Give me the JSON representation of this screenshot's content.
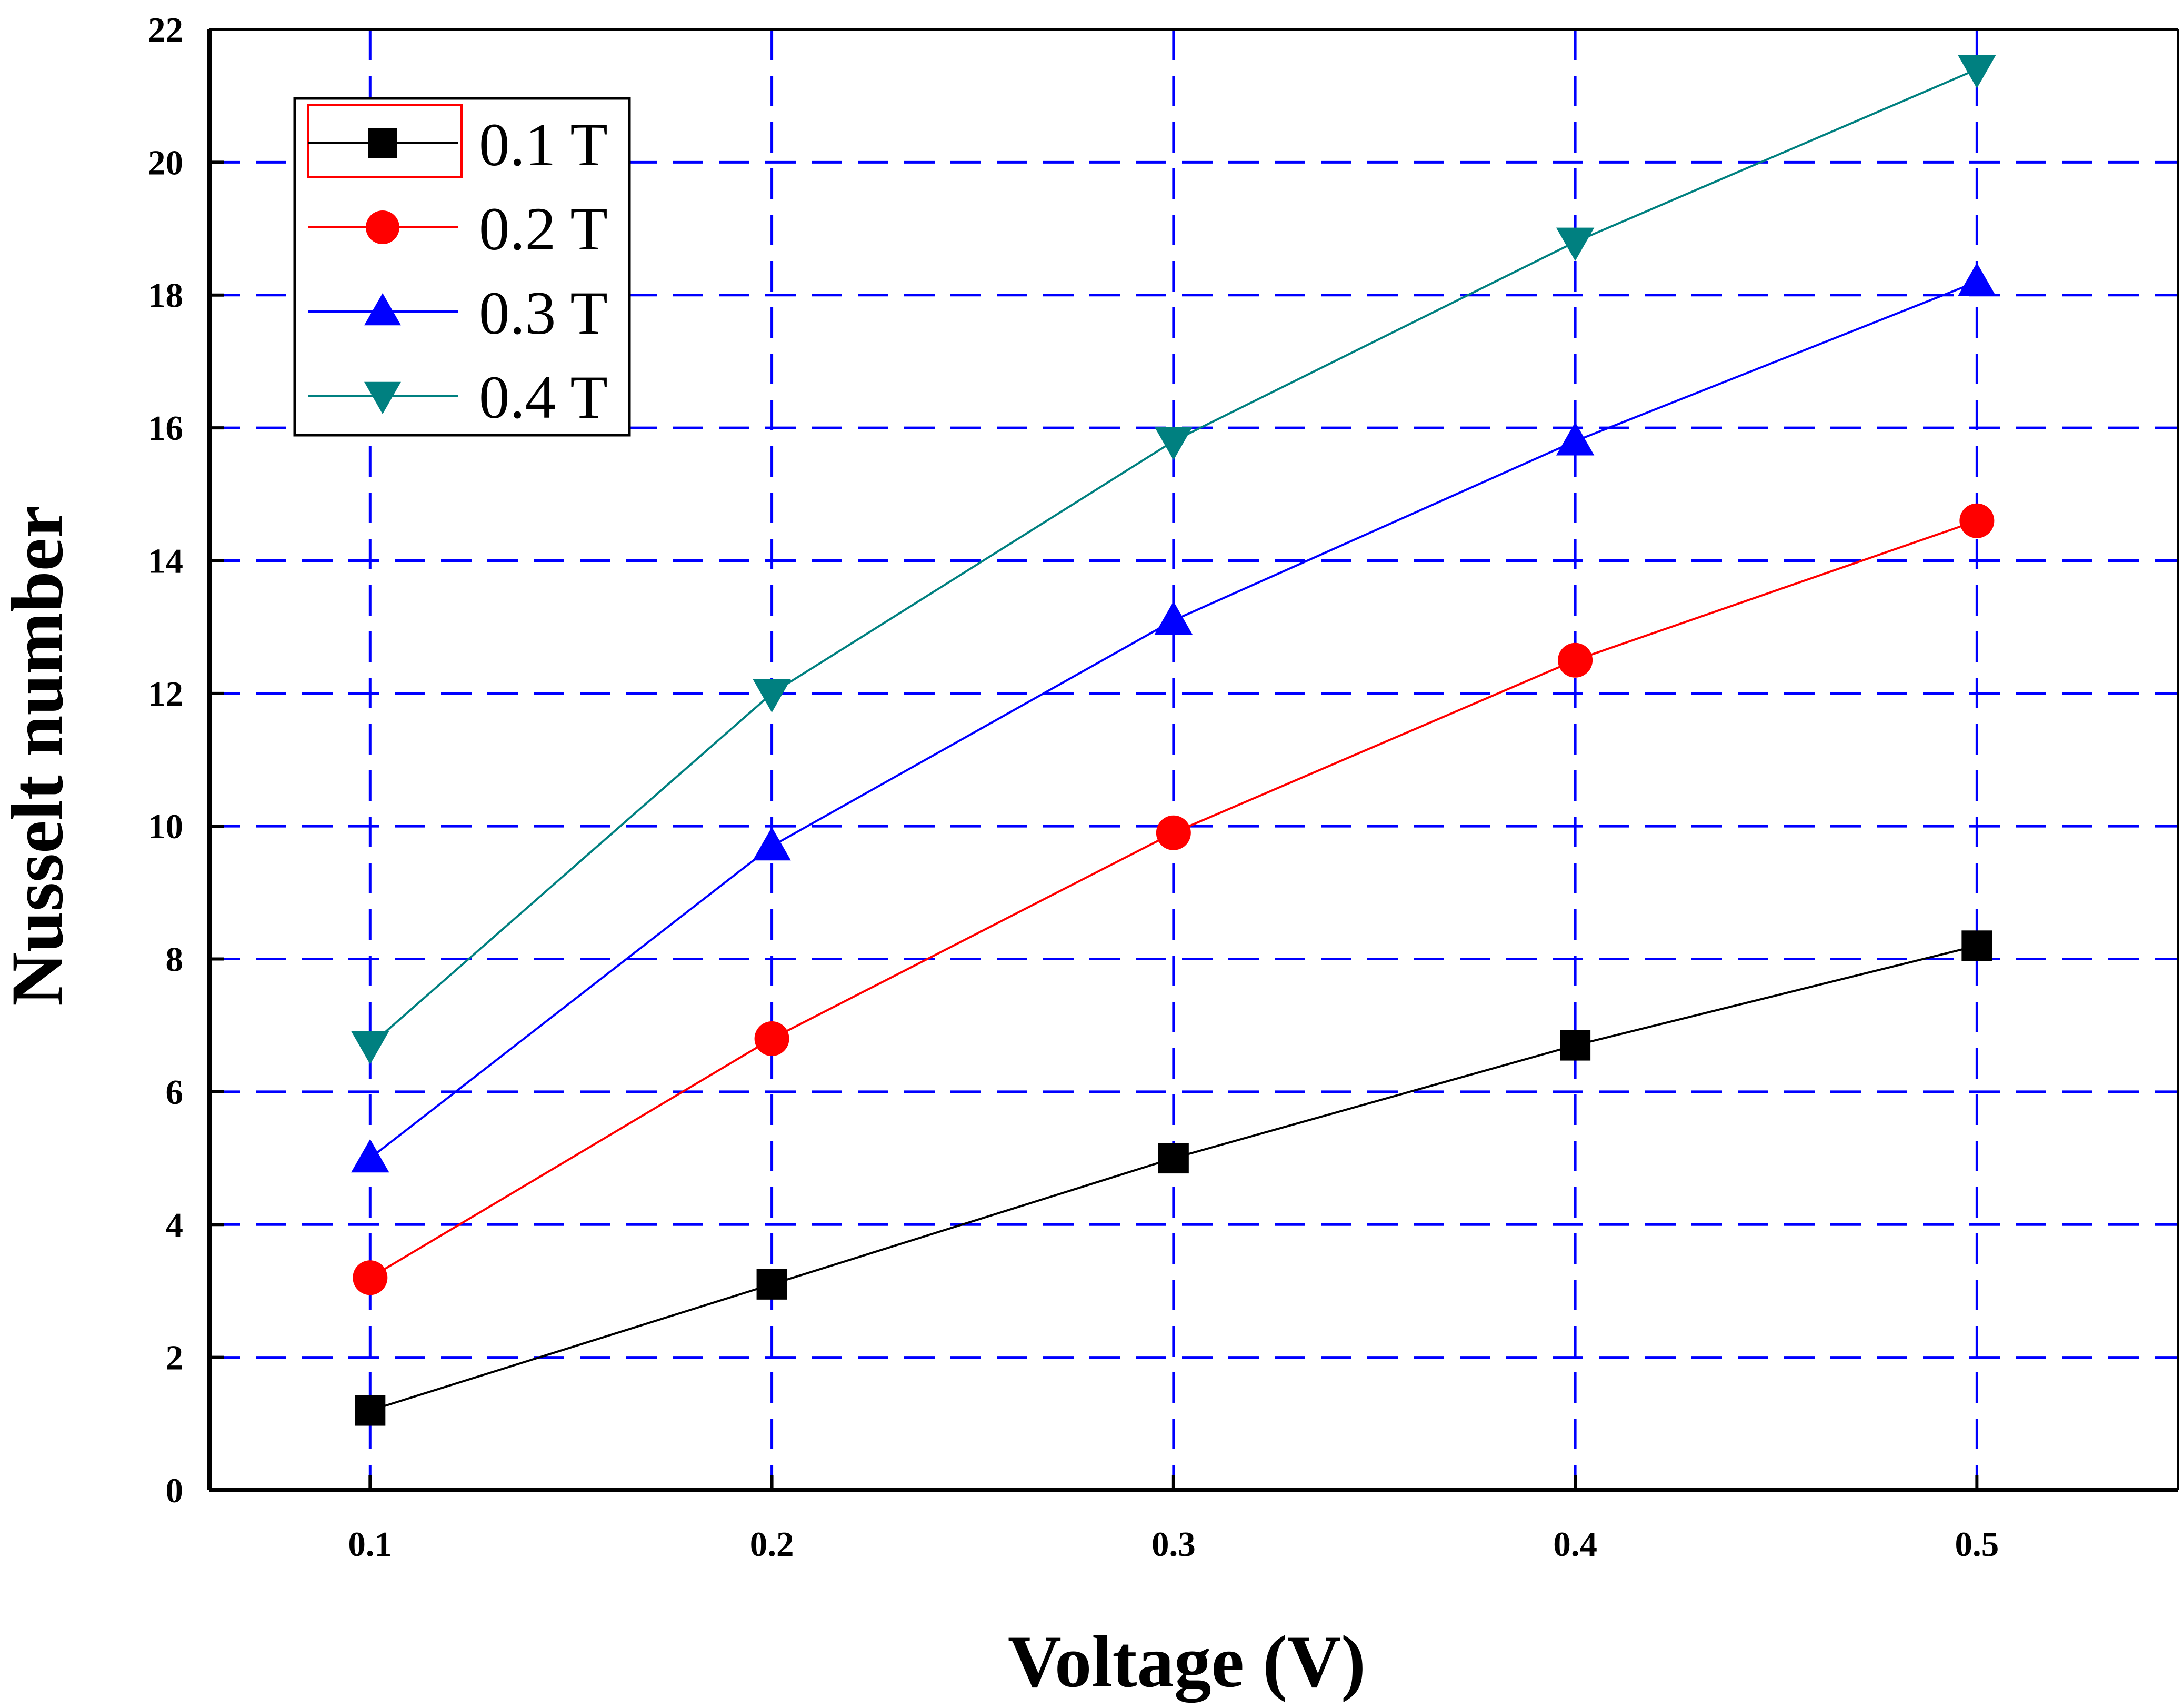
{
  "chart_data": {
    "type": "line",
    "xlabel": "Voltage (V)",
    "ylabel": "Nusselt number",
    "x": [
      0.1,
      0.2,
      0.3,
      0.4,
      0.5
    ],
    "xlim": [
      0.06,
      0.55
    ],
    "ylim": [
      0,
      22
    ],
    "xticks": [
      "0.1",
      "0.2",
      "0.3",
      "0.4",
      "0.5"
    ],
    "yticks": [
      "0",
      "2",
      "4",
      "6",
      "8",
      "10",
      "12",
      "14",
      "16",
      "18",
      "20",
      "22"
    ],
    "grid": true,
    "legend_position": "top-left",
    "series": [
      {
        "name": "0.1 T",
        "color": "#000000",
        "marker": "square",
        "values": [
          1.2,
          3.1,
          5.0,
          6.7,
          8.2
        ]
      },
      {
        "name": "0.2 T",
        "color": "#ff0000",
        "marker": "circle",
        "values": [
          3.2,
          6.8,
          9.9,
          12.5,
          14.6
        ]
      },
      {
        "name": "0.3 T",
        "color": "#0000ff",
        "marker": "triangle-up",
        "values": [
          5.0,
          9.7,
          13.1,
          15.8,
          18.2
        ]
      },
      {
        "name": "0.4 T",
        "color": "#008080",
        "marker": "triangle-down",
        "values": [
          6.7,
          12.0,
          15.8,
          18.8,
          21.4
        ]
      }
    ]
  }
}
